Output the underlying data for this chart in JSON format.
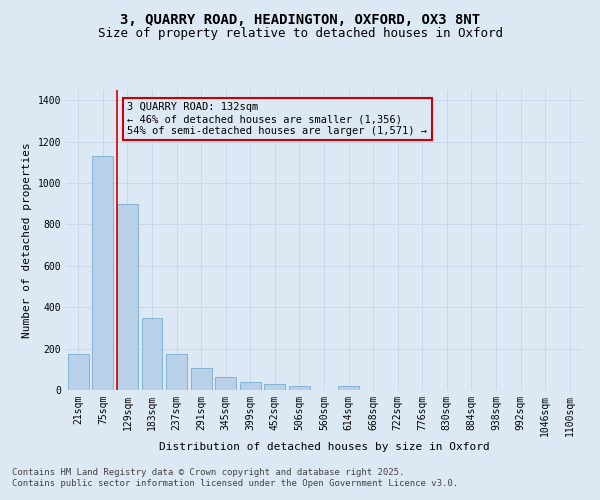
{
  "title_line1": "3, QUARRY ROAD, HEADINGTON, OXFORD, OX3 8NT",
  "title_line2": "Size of property relative to detached houses in Oxford",
  "xlabel": "Distribution of detached houses by size in Oxford",
  "ylabel": "Number of detached properties",
  "bar_labels": [
    "21sqm",
    "75sqm",
    "129sqm",
    "183sqm",
    "237sqm",
    "291sqm",
    "345sqm",
    "399sqm",
    "452sqm",
    "506sqm",
    "560sqm",
    "614sqm",
    "668sqm",
    "722sqm",
    "776sqm",
    "830sqm",
    "884sqm",
    "938sqm",
    "992sqm",
    "1046sqm",
    "1100sqm"
  ],
  "bar_values": [
    175,
    1130,
    900,
    350,
    175,
    105,
    65,
    40,
    28,
    18,
    0,
    18,
    0,
    0,
    0,
    0,
    0,
    0,
    0,
    0,
    0
  ],
  "bar_color": "#b8d0e8",
  "bar_edge_color": "#7aaad0",
  "vline_color": "#cc0000",
  "annotation_text": "3 QUARRY ROAD: 132sqm\n← 46% of detached houses are smaller (1,356)\n54% of semi-detached houses are larger (1,571) →",
  "annotation_box_edge_color": "#cc0000",
  "ylim": [
    0,
    1450
  ],
  "yticks": [
    0,
    200,
    400,
    600,
    800,
    1000,
    1200,
    1400
  ],
  "grid_color": "#c8d8ea",
  "bg_color": "#dce9f5",
  "footer_line1": "Contains HM Land Registry data © Crown copyright and database right 2025.",
  "footer_line2": "Contains public sector information licensed under the Open Government Licence v3.0.",
  "title_fontsize": 10,
  "subtitle_fontsize": 9,
  "axis_label_fontsize": 8,
  "tick_fontsize": 7,
  "annotation_fontsize": 7.5,
  "footer_fontsize": 6.5
}
